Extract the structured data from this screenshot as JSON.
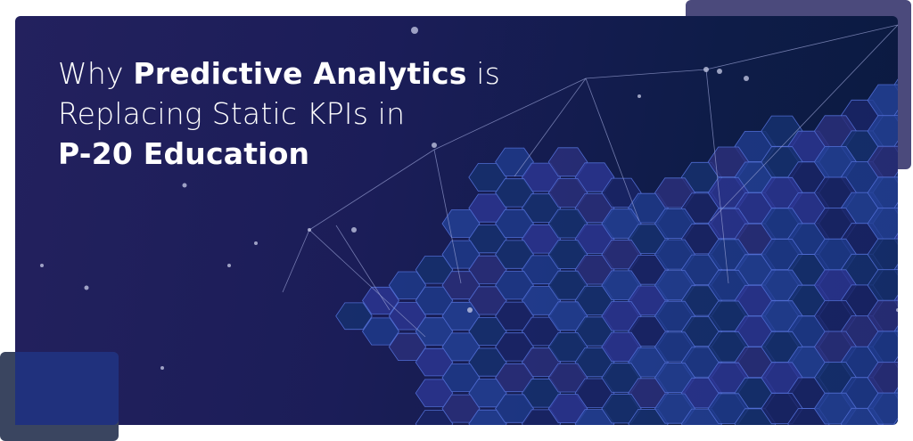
{
  "banner": {
    "title_line1_pre": "Why ",
    "title_line1_bold": "Predictive Analytics",
    "title_line1_post": " is",
    "title_line2": "Replacing Static KPIs in",
    "title_line3_bold": "P-20 Education"
  },
  "colors": {
    "background_left": "#23215e",
    "background_right": "#0b1a40",
    "accent_top_right": "#4b4a7c",
    "accent_bottom_left": "#3a4560",
    "hex_fill": "#1f3a8a",
    "text": "#ffffff"
  }
}
